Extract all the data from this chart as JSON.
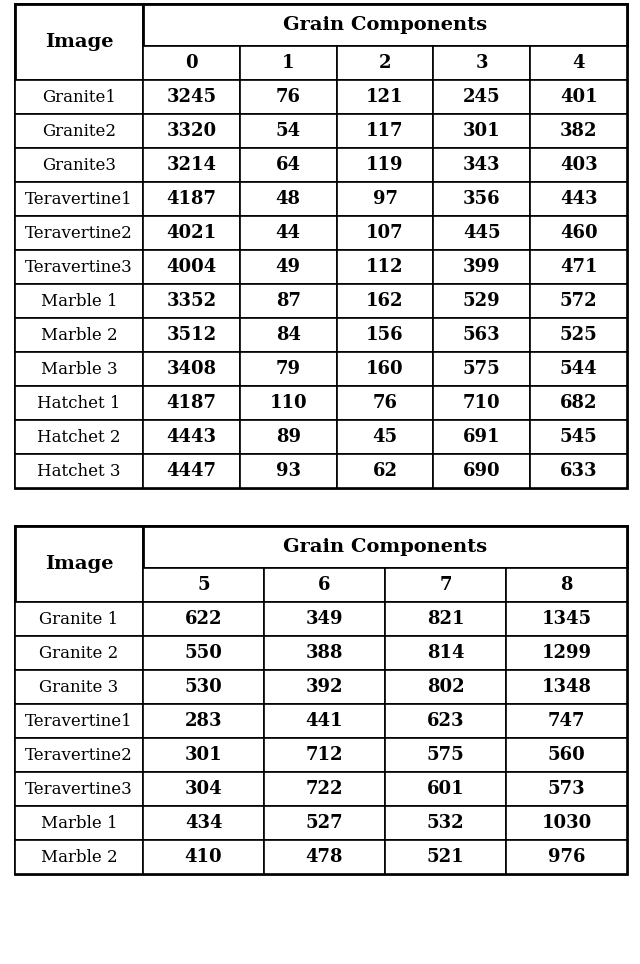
{
  "table1": {
    "grain_components_header": "Grain Components",
    "data_col_headers": [
      "0",
      "1",
      "2",
      "3",
      "4"
    ],
    "rows": [
      [
        "Granite1",
        "3245",
        "76",
        "121",
        "245",
        "401"
      ],
      [
        "Granite2",
        "3320",
        "54",
        "117",
        "301",
        "382"
      ],
      [
        "Granite3",
        "3214",
        "64",
        "119",
        "343",
        "403"
      ],
      [
        "Teravertine1",
        "4187",
        "48",
        "97",
        "356",
        "443"
      ],
      [
        "Teravertine2",
        "4021",
        "44",
        "107",
        "445",
        "460"
      ],
      [
        "Teravertine3",
        "4004",
        "49",
        "112",
        "399",
        "471"
      ],
      [
        "Marble 1",
        "3352",
        "87",
        "162",
        "529",
        "572"
      ],
      [
        "Marble 2",
        "3512",
        "84",
        "156",
        "563",
        "525"
      ],
      [
        "Marble 3",
        "3408",
        "79",
        "160",
        "575",
        "544"
      ],
      [
        "Hatchet 1",
        "4187",
        "110",
        "76",
        "710",
        "682"
      ],
      [
        "Hatchet 2",
        "4443",
        "89",
        "45",
        "691",
        "545"
      ],
      [
        "Hatchet 3",
        "4447",
        "93",
        "62",
        "690",
        "633"
      ]
    ]
  },
  "table2": {
    "grain_components_header": "Grain Components",
    "data_col_headers": [
      "5",
      "6",
      "7",
      "8"
    ],
    "rows": [
      [
        "Granite 1",
        "622",
        "349",
        "821",
        "1345"
      ],
      [
        "Granite 2",
        "550",
        "388",
        "814",
        "1299"
      ],
      [
        "Granite 3",
        "530",
        "392",
        "802",
        "1348"
      ],
      [
        "Teravertine1",
        "283",
        "441",
        "623",
        "747"
      ],
      [
        "Teravertine2",
        "301",
        "712",
        "575",
        "560"
      ],
      [
        "Teravertine3",
        "304",
        "722",
        "601",
        "573"
      ],
      [
        "Marble 1",
        "434",
        "527",
        "532",
        "1030"
      ],
      [
        "Marble 2",
        "410",
        "478",
        "521",
        "976"
      ]
    ]
  },
  "bg_color": "#ffffff",
  "header_font_size": 14,
  "subheader_font_size": 13,
  "row_label_font_size": 12,
  "data_font_size": 13
}
